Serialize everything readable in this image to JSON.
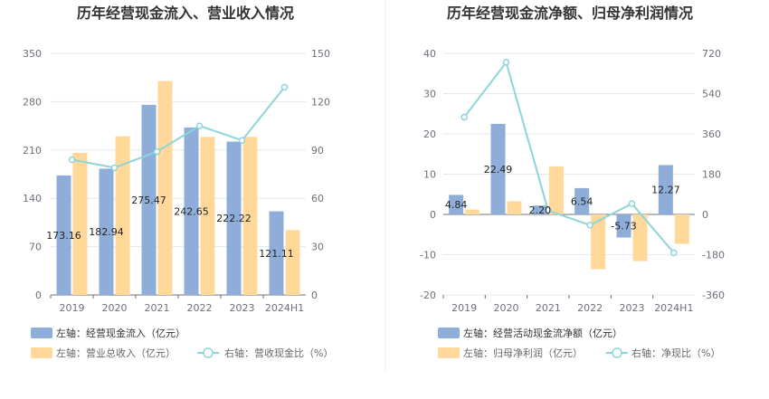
{
  "colors": {
    "left_bar": "#8eadd9",
    "right_bar": "#ffd89a",
    "line": "#8dd5d9",
    "grid": "#e5e8ef",
    "divider": "#e8e8e8"
  },
  "chart_data": [
    {
      "type": "bar",
      "title": "历年经营现金流入、营业收入情况",
      "categories": [
        "2019",
        "2020",
        "2021",
        "2022",
        "2023",
        "2024H1"
      ],
      "left_axis": {
        "min": 0,
        "max": 350,
        "ticks": [
          "0",
          "70",
          "140",
          "210",
          "280",
          "350"
        ]
      },
      "right_axis": {
        "min": 0,
        "max": 150,
        "ticks": [
          "0",
          "30",
          "60",
          "90",
          "120",
          "150"
        ]
      },
      "series": [
        {
          "name": "左轴：经营现金流入（亿元）",
          "kind": "bar",
          "axis": "left",
          "values": [
            173.16,
            182.94,
            275.47,
            242.65,
            222.22,
            121.11
          ],
          "labels": [
            "173.16",
            "182.94",
            "275.47",
            "242.65",
            "222.22",
            "121.11"
          ]
        },
        {
          "name": "左轴：营业总收入（亿元）",
          "kind": "bar",
          "axis": "left",
          "values": [
            206,
            230,
            310,
            229,
            229,
            94
          ]
        },
        {
          "name": "右轴：营收现金比（%）",
          "kind": "line",
          "axis": "right",
          "values": [
            84,
            79,
            89,
            105,
            96,
            129
          ]
        }
      ]
    },
    {
      "type": "bar",
      "title": "历年经营现金流净额、归母净利润情况",
      "categories": [
        "2019",
        "2020",
        "2021",
        "2022",
        "2023",
        "2024H1"
      ],
      "left_axis": {
        "min": -20,
        "max": 40,
        "ticks": [
          "-20",
          "-10",
          "0",
          "10",
          "20",
          "30",
          "40"
        ]
      },
      "right_axis": {
        "min": -360,
        "max": 720,
        "ticks": [
          "-360",
          "-180",
          "0",
          "180",
          "360",
          "540",
          "720"
        ]
      },
      "series": [
        {
          "name": "左轴：经营活动现金流净额（亿元）",
          "kind": "bar",
          "axis": "left",
          "values": [
            4.84,
            22.49,
            2.2,
            6.54,
            -5.73,
            12.27
          ],
          "labels": [
            "4.84",
            "22.49",
            "2.20",
            "6.54",
            "-5.73",
            "12.27"
          ]
        },
        {
          "name": "左轴：归母净利润（亿元）",
          "kind": "bar",
          "axis": "left",
          "values": [
            1.2,
            3.3,
            11.9,
            -13.6,
            -11.6,
            -7.3
          ]
        },
        {
          "name": "右轴：净现比（%）",
          "kind": "line",
          "axis": "right",
          "values": [
            435,
            680,
            18,
            -48,
            48,
            -172
          ]
        }
      ]
    }
  ]
}
